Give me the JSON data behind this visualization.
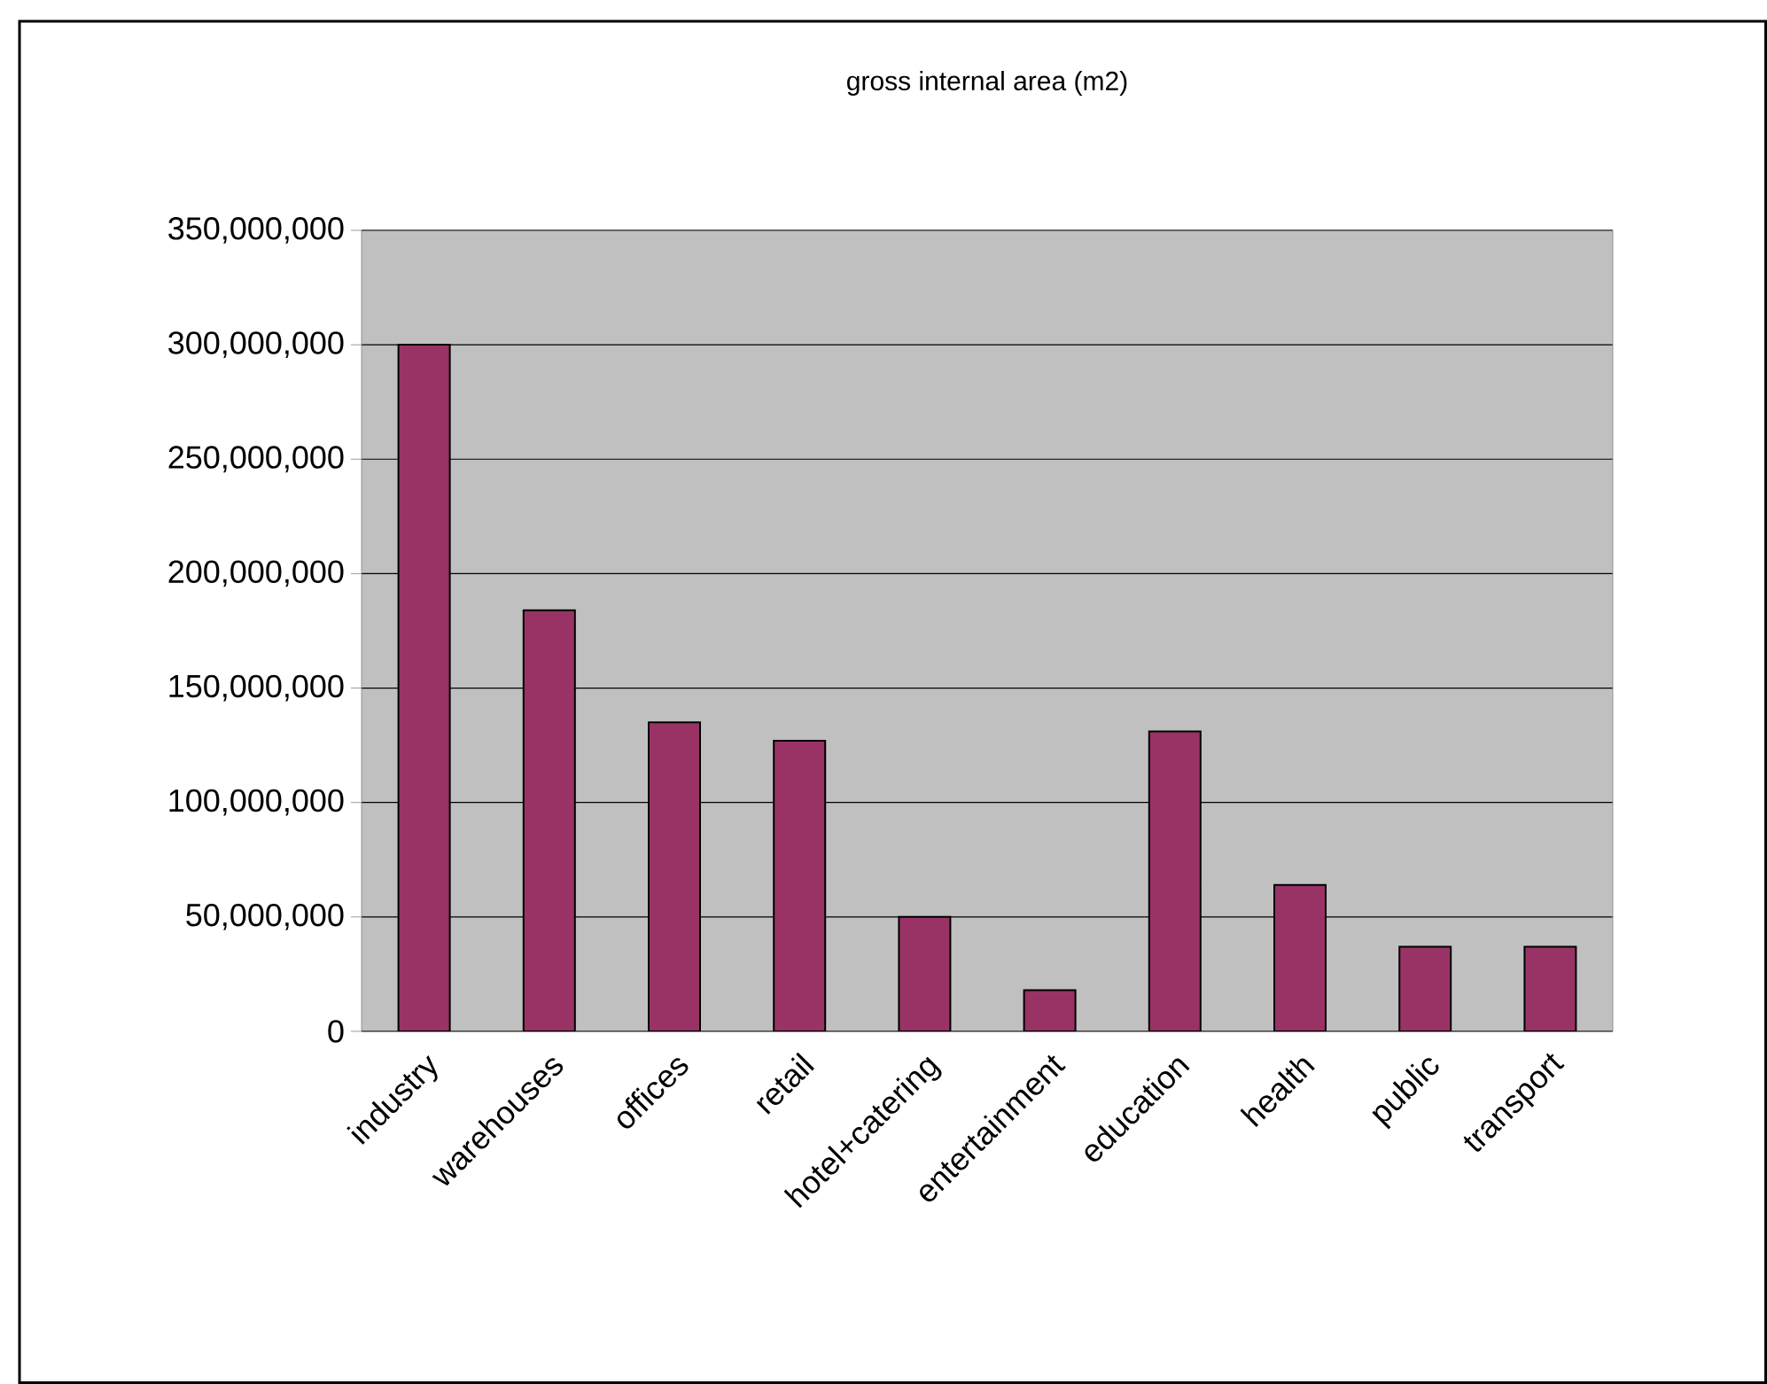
{
  "chart_data": {
    "type": "bar",
    "title": "gross internal area (m2)",
    "categories": [
      "industry",
      "warehouses",
      "offices",
      "retail",
      "hotel+catering",
      "entertainment",
      "education",
      "health",
      "public",
      "transport"
    ],
    "values": [
      300000000,
      184000000,
      135000000,
      127000000,
      50000000,
      18000000,
      131000000,
      64000000,
      37000000,
      37000000
    ],
    "color": "#993366",
    "ylim": [
      0,
      350000000
    ],
    "yticks": [
      0,
      {
        "value": 50000000,
        "label": "50,000,000"
      },
      {
        "value": 100000000,
        "label": "100,000,000"
      },
      {
        "value": 150000000,
        "label": "150,000,000"
      },
      {
        "value": 200000000,
        "label": "200,000,000"
      },
      {
        "value": 250000000,
        "label": "250,000,000"
      },
      {
        "value": 300000000,
        "label": "300,000,000"
      },
      {
        "value": 350000000,
        "label": "350,000,000"
      }
    ],
    "grid": "y"
  }
}
